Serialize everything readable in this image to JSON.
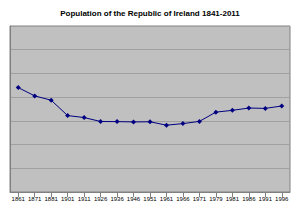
{
  "chart_data": {
    "type": "line",
    "title": "Population of the Republic of Ireland 1841-2011",
    "categories": [
      "1861",
      "1871",
      "1881",
      "1901",
      "1911",
      "1926",
      "1936",
      "1946",
      "1951",
      "1961",
      "1966",
      "1971",
      "1979",
      "1981",
      "1986",
      "1991",
      "1996"
    ],
    "values": [
      4402000,
      4053000,
      3870000,
      3222000,
      3140000,
      2972000,
      2968000,
      2955000,
      2961000,
      2818000,
      2884000,
      2978000,
      3368000,
      3443000,
      3541000,
      3526000,
      3626000
    ],
    "color": "#000080",
    "marker": "diamond",
    "ylim": [
      0,
      7000000
    ],
    "yticks": [
      0,
      1000000,
      2000000,
      3000000,
      4000000,
      5000000,
      6000000,
      7000000
    ],
    "grid": true,
    "tick_labels": "x"
  }
}
